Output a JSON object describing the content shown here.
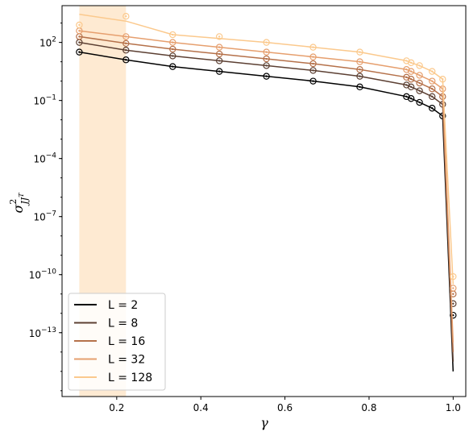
{
  "chart_data": {
    "type": "line",
    "title": "",
    "xlabel": "γ",
    "ylabel_base": "σ",
    "ylabel_sup": "2",
    "ylabel_sub": "JJ",
    "ylabel_subsup": "T",
    "y_scale": "log",
    "xlim": [
      0.07,
      1.03
    ],
    "ylim_log10": [
      -16.3,
      3.9
    ],
    "x_ticks": [
      {
        "value": 0.2,
        "label": "0.2"
      },
      {
        "value": 0.4,
        "label": "0.4"
      },
      {
        "value": 0.6,
        "label": "0.6"
      },
      {
        "value": 0.8,
        "label": "0.8"
      },
      {
        "value": 1.0,
        "label": "1.0"
      }
    ],
    "y_ticks": [
      {
        "exp": 2,
        "label": "10",
        "sup": "2"
      },
      {
        "exp": -1,
        "label": "10",
        "sup": "−1"
      },
      {
        "exp": -4,
        "label": "10",
        "sup": "−4"
      },
      {
        "exp": -7,
        "label": "10",
        "sup": "−7"
      },
      {
        "exp": -10,
        "label": "10",
        "sup": "−10"
      },
      {
        "exp": -13,
        "label": "10",
        "sup": "−13"
      }
    ],
    "grid": false,
    "legend_position": "lower-left",
    "band": {
      "x_start": 0.111,
      "x_end": 0.222,
      "color": "#fde3c3"
    },
    "series": [
      {
        "name": "L = 2",
        "color": "#000000",
        "x": [
          0.111,
          0.222,
          0.333,
          0.444,
          0.556,
          0.667,
          0.778,
          0.889,
          0.9,
          0.92,
          0.95,
          0.975,
          1.0
        ],
        "log10y": [
          1.5,
          1.1,
          0.75,
          0.5,
          0.25,
          0.0,
          -0.3,
          -0.8,
          -0.9,
          -1.1,
          -1.4,
          -1.8,
          -15.0
        ],
        "marker_x": [
          0.111,
          0.222,
          0.333,
          0.444,
          0.556,
          0.667,
          0.778,
          0.889,
          0.9,
          0.92,
          0.95,
          0.975,
          1.0
        ],
        "marker_log10y": [
          1.5,
          1.1,
          0.75,
          0.5,
          0.25,
          0.0,
          -0.3,
          -0.8,
          -0.9,
          -1.1,
          -1.4,
          -1.8,
          -12.1
        ]
      },
      {
        "name": "L = 8",
        "color": "#5c4033",
        "x": [
          0.111,
          0.222,
          0.333,
          0.444,
          0.556,
          0.667,
          0.778,
          0.889,
          0.9,
          0.92,
          0.95,
          0.975,
          1.0
        ],
        "log10y": [
          2.0,
          1.6,
          1.3,
          1.05,
          0.8,
          0.55,
          0.25,
          -0.2,
          -0.3,
          -0.5,
          -0.8,
          -1.2,
          -14.5
        ],
        "marker_x": [
          0.111,
          0.222,
          0.333,
          0.444,
          0.556,
          0.667,
          0.778,
          0.889,
          0.9,
          0.92,
          0.95,
          0.975,
          1.0
        ],
        "marker_log10y": [
          2.0,
          1.6,
          1.3,
          1.05,
          0.8,
          0.55,
          0.25,
          -0.2,
          -0.3,
          -0.5,
          -0.8,
          -1.2,
          -11.5
        ]
      },
      {
        "name": "L = 16",
        "color": "#b5714a",
        "x": [
          0.111,
          0.222,
          0.333,
          0.444,
          0.556,
          0.667,
          0.778,
          0.889,
          0.9,
          0.92,
          0.95,
          0.975,
          1.0
        ],
        "log10y": [
          2.3,
          1.95,
          1.65,
          1.4,
          1.15,
          0.9,
          0.6,
          0.2,
          0.1,
          -0.1,
          -0.4,
          -0.8,
          -14.0
        ],
        "marker_x": [
          0.111,
          0.222,
          0.333,
          0.444,
          0.556,
          0.667,
          0.778,
          0.889,
          0.9,
          0.92,
          0.95,
          0.975,
          1.0
        ],
        "marker_log10y": [
          2.3,
          1.95,
          1.65,
          1.4,
          1.15,
          0.9,
          0.6,
          0.2,
          0.1,
          -0.1,
          -0.4,
          -0.8,
          -11.0
        ]
      },
      {
        "name": "L = 32",
        "color": "#e69f6e",
        "x": [
          0.111,
          0.222,
          0.333,
          0.444,
          0.556,
          0.667,
          0.778,
          0.889,
          0.9,
          0.92,
          0.95,
          0.975,
          1.0
        ],
        "log10y": [
          2.6,
          2.3,
          2.0,
          1.75,
          1.5,
          1.25,
          1.0,
          0.6,
          0.5,
          0.3,
          0.0,
          -0.4,
          -13.5
        ],
        "marker_x": [
          0.111,
          0.222,
          0.333,
          0.444,
          0.556,
          0.667,
          0.778,
          0.889,
          0.9,
          0.92,
          0.95,
          0.975,
          1.0
        ],
        "marker_log10y": [
          2.6,
          2.3,
          2.0,
          1.75,
          1.5,
          1.25,
          1.0,
          0.6,
          0.5,
          0.3,
          0.0,
          -0.4,
          -10.7
        ]
      },
      {
        "name": "L = 128",
        "color": "#fbc98d",
        "x": [
          0.111,
          0.222,
          0.333,
          0.444,
          0.556,
          0.667,
          0.778,
          0.889,
          0.9,
          0.92,
          0.95,
          0.975,
          1.0
        ],
        "log10y": [
          3.45,
          3.1,
          2.4,
          2.2,
          2.0,
          1.75,
          1.5,
          1.05,
          0.95,
          0.8,
          0.5,
          0.1,
          -10.5
        ],
        "marker_x": [
          0.111,
          0.222,
          0.333,
          0.444,
          0.556,
          0.667,
          0.778,
          0.889,
          0.9,
          0.92,
          0.95,
          0.975,
          1.0
        ],
        "marker_log10y": [
          2.9,
          3.35,
          2.4,
          2.3,
          2.0,
          1.75,
          1.5,
          1.05,
          0.95,
          0.8,
          0.5,
          0.1,
          -10.1
        ]
      }
    ]
  }
}
